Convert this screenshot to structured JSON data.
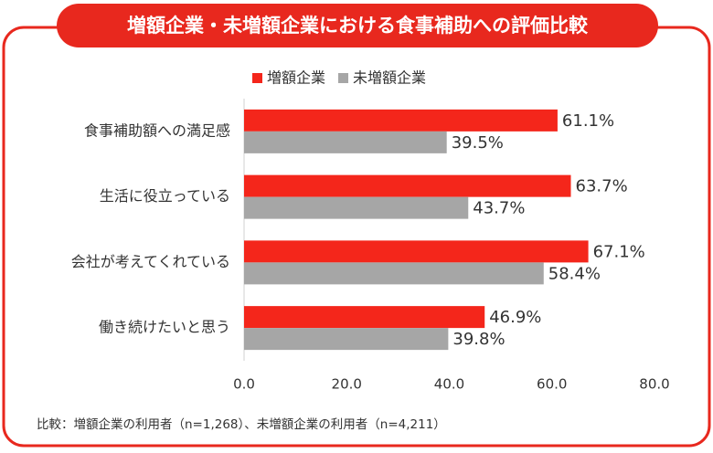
{
  "chart_data": {
    "type": "hbar",
    "title": "増額企業・未増額企業における食事補助への評価比較",
    "categories": [
      "食事補助額への満足感",
      "生活に役立っている",
      "会社が考えてくれている",
      "働き続けたいと思う"
    ],
    "series": [
      {
        "name": "増額企業",
        "color": "#f4261b",
        "values": [
          61.1,
          63.7,
          67.1,
          46.9
        ],
        "value_labels": [
          "61.1%",
          "63.7%",
          "67.1%",
          "46.9%"
        ]
      },
      {
        "name": "未増額企業",
        "color": "#a6a6a6",
        "values": [
          39.5,
          43.7,
          58.4,
          39.8
        ],
        "value_labels": [
          "39.5%",
          "43.7%",
          "58.4%",
          "39.8%"
        ]
      }
    ],
    "xlim": [
      0,
      80
    ],
    "xticks": [
      {
        "value": 0,
        "label": "0.0"
      },
      {
        "value": 20,
        "label": "20.0"
      },
      {
        "value": 40,
        "label": "40.0"
      },
      {
        "value": 60,
        "label": "60.0"
      },
      {
        "value": 80,
        "label": "80.0"
      }
    ],
    "legend": "top",
    "footnote": "比較：増額企業の利用者（n=1,268）、未増額企業の利用者（n=4,211）"
  }
}
